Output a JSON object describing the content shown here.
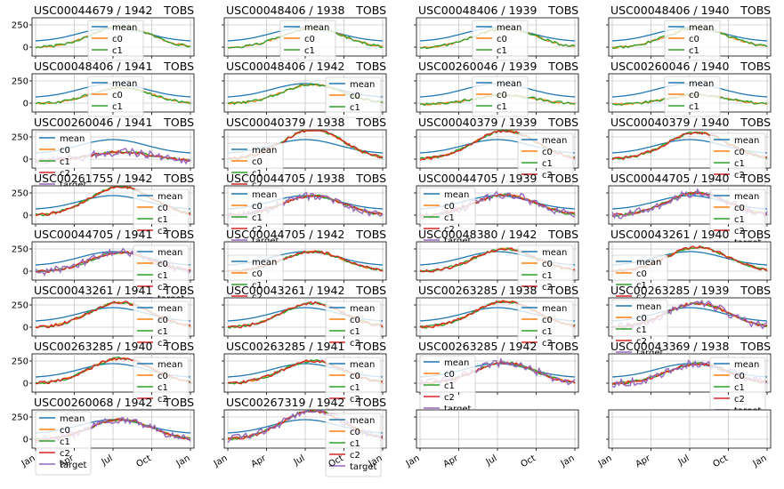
{
  "chart_data": {
    "type": "line",
    "layout": {
      "rows": 8,
      "cols": 4,
      "sharex": true,
      "sharey": "row"
    },
    "series_names": [
      "mean",
      "c0",
      "c1",
      "c2",
      "target"
    ],
    "series_colors": {
      "mean": "#1f77b4",
      "c0": "#ff7f0e",
      "c1": "#2ca02c",
      "c2": "#d62728",
      "target": "#9467bd"
    },
    "x_tick_labels": [
      "Jan",
      "Apr",
      "Jul",
      "Oct",
      "Jan"
    ],
    "row_y_ticks": [
      [
        "250",
        "0"
      ],
      [
        "250",
        "0"
      ],
      [
        "250",
        "0"
      ],
      [
        "250",
        "0"
      ],
      [
        "250",
        "0"
      ],
      [
        "250",
        "0"
      ],
      [
        "250",
        "0"
      ],
      [
        "250",
        "0"
      ]
    ],
    "subplots": [
      {
        "title": "USC00044679 / 1942",
        "element": "TOBS",
        "series": [
          "mean",
          "c0",
          "c1"
        ],
        "legend": "top-center",
        "peak": 230
      },
      {
        "title": "USC00048406 / 1938",
        "element": "TOBS",
        "series": [
          "mean",
          "c0",
          "c1"
        ],
        "legend": "top-center",
        "peak": 215
      },
      {
        "title": "USC00048406 / 1939",
        "element": "TOBS",
        "series": [
          "mean",
          "c0",
          "c1"
        ],
        "legend": "top-center",
        "peak": 210
      },
      {
        "title": "USC00048406 / 1940",
        "element": "TOBS",
        "series": [
          "mean",
          "c0",
          "c1"
        ],
        "legend": "top-center",
        "peak": 215
      },
      {
        "title": "USC00048406 / 1941",
        "element": "TOBS",
        "series": [
          "mean",
          "c0",
          "c1"
        ],
        "legend": "top-center",
        "peak": 175
      },
      {
        "title": "USC00048406 / 1942",
        "element": "TOBS",
        "series": [
          "mean",
          "c0",
          "c1"
        ],
        "legend": "center-right",
        "peak": 210
      },
      {
        "title": "USC00260046 / 1939",
        "element": "TOBS",
        "series": [
          "mean",
          "c0",
          "c1"
        ],
        "legend": "top-center",
        "peak": 90
      },
      {
        "title": "USC00260046 / 1940",
        "element": "TOBS",
        "series": [
          "mean",
          "c0",
          "c1"
        ],
        "legend": "top-center",
        "peak": 90
      },
      {
        "title": "USC00260046 / 1941",
        "element": "TOBS",
        "series": [
          "mean",
          "c0",
          "c1",
          "c2",
          "target"
        ],
        "legend": "left",
        "peak": 80
      },
      {
        "title": "USC00040379 / 1938",
        "element": "TOBS",
        "series": [
          "mean",
          "c0",
          "c1",
          "c2"
        ],
        "legend": "bottom-left",
        "peak": 330
      },
      {
        "title": "USC00040379 / 1939",
        "element": "TOBS",
        "series": [
          "mean",
          "c0",
          "c1",
          "c2"
        ],
        "legend": "center-right",
        "peak": 320
      },
      {
        "title": "USC00040379 / 1940",
        "element": "TOBS",
        "series": [
          "mean",
          "c0",
          "c1",
          "c2"
        ],
        "legend": "right",
        "peak": 300
      },
      {
        "title": "USC00261755 / 1942",
        "element": "TOBS",
        "series": [
          "mean",
          "c0",
          "c1",
          "c2"
        ],
        "legend": "right",
        "peak": 320
      },
      {
        "title": "USC00044705 / 1938",
        "element": "TOBS",
        "series": [
          "mean",
          "c0",
          "c1",
          "c2",
          "target"
        ],
        "legend": "left",
        "peak": 220
      },
      {
        "title": "USC00044705 / 1939",
        "element": "TOBS",
        "series": [
          "mean",
          "c0",
          "c1",
          "c2",
          "target"
        ],
        "legend": "left",
        "peak": 230
      },
      {
        "title": "USC00044705 / 1940",
        "element": "TOBS",
        "series": [
          "mean",
          "c0",
          "c1",
          "c2",
          "target"
        ],
        "legend": "right",
        "peak": 250
      },
      {
        "title": "USC00044705 / 1941",
        "element": "TOBS",
        "series": [
          "mean",
          "c0",
          "c1",
          "c2",
          "target"
        ],
        "legend": "right",
        "peak": 210
      },
      {
        "title": "USC00044705 / 1942",
        "element": "TOBS",
        "series": [
          "mean",
          "c0",
          "c1",
          "c2"
        ],
        "legend": "left",
        "peak": 220
      },
      {
        "title": "USC00048380 / 1942",
        "element": "TOBS",
        "series": [
          "mean",
          "c0",
          "c1",
          "c2"
        ],
        "legend": "right",
        "peak": 250
      },
      {
        "title": "USC00043261 / 1940",
        "element": "TOBS",
        "series": [
          "mean",
          "c0",
          "c1",
          "c2"
        ],
        "legend": "left",
        "peak": 270
      },
      {
        "title": "USC00043261 / 1941",
        "element": "TOBS",
        "series": [
          "mean",
          "c0",
          "c1",
          "c2"
        ],
        "legend": "right",
        "peak": 280
      },
      {
        "title": "USC00043261 / 1942",
        "element": "TOBS",
        "series": [
          "mean",
          "c0",
          "c1",
          "c2"
        ],
        "legend": "right",
        "peak": 270
      },
      {
        "title": "USC00263285 / 1938",
        "element": "TOBS",
        "series": [
          "mean",
          "c0",
          "c1",
          "c2"
        ],
        "legend": "right",
        "peak": 290
      },
      {
        "title": "USC00263285 / 1939",
        "element": "TOBS",
        "series": [
          "mean",
          "c0",
          "c1",
          "c2",
          "target"
        ],
        "legend": "left",
        "peak": 270
      },
      {
        "title": "USC00263285 / 1940",
        "element": "TOBS",
        "series": [
          "mean",
          "c0",
          "c1",
          "c2"
        ],
        "legend": "right",
        "peak": 280
      },
      {
        "title": "USC00263285 / 1941",
        "element": "TOBS",
        "series": [
          "mean",
          "c0",
          "c1",
          "c2"
        ],
        "legend": "right",
        "peak": 250
      },
      {
        "title": "USC00263285 / 1942",
        "element": "TOBS",
        "series": [
          "mean",
          "c0",
          "c1",
          "c2",
          "target"
        ],
        "legend": "left",
        "peak": 230
      },
      {
        "title": "USC00043369 / 1938",
        "element": "TOBS",
        "series": [
          "mean",
          "c0",
          "c1",
          "c2",
          "target"
        ],
        "legend": "right",
        "peak": 220
      },
      {
        "title": "USC00260068 / 1942",
        "element": "TOBS",
        "series": [
          "mean",
          "c0",
          "c1",
          "c2",
          "target"
        ],
        "legend": "left",
        "peak": 220
      },
      {
        "title": "USC00267319 / 1942",
        "element": "TOBS",
        "series": [
          "mean",
          "c0",
          "c1",
          "c2",
          "target"
        ],
        "legend": "right",
        "peak": 320
      },
      {
        "title": "",
        "element": "",
        "series": [],
        "legend": "",
        "peak": 0
      },
      {
        "title": "",
        "element": "",
        "series": [],
        "legend": "",
        "peak": 0
      }
    ]
  }
}
